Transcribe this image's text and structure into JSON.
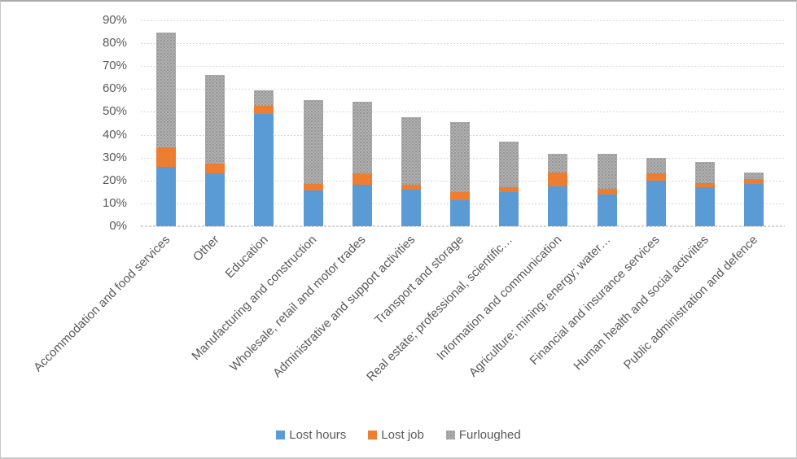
{
  "chart_data": {
    "type": "bar",
    "stacked": true,
    "orientation": "vertical",
    "title": "",
    "xlabel": "",
    "ylabel": "",
    "ylim": [
      0,
      90
    ],
    "ytick_step": 10,
    "yticks": [
      "0%",
      "10%",
      "20%",
      "30%",
      "40%",
      "50%",
      "60%",
      "70%",
      "80%",
      "90%"
    ],
    "grid": "horizontal-dotted",
    "legend_position": "bottom",
    "categories": [
      "Accommodation and food services",
      "Other",
      "Education",
      "Manufacturing and construction",
      "Wholesale, retail and motor trades",
      "Administrative and support activities",
      "Transport and storage",
      "Real estate; professional, scientific…",
      "Information and communication",
      "Agriculture; mining; energy; water…",
      "Financial and insurance services",
      "Human health and social activiites",
      "Public administration and defence"
    ],
    "series": [
      {
        "name": "Lost hours",
        "color": "#5B9BD5",
        "pattern": "solid",
        "values": [
          26,
          23,
          49,
          15.5,
          18,
          16,
          11.5,
          15,
          17.5,
          14,
          20,
          17,
          18.5
        ]
      },
      {
        "name": "Lost job",
        "color": "#ED7D31",
        "pattern": "solid",
        "values": [
          8.5,
          4.5,
          3.5,
          3,
          5,
          2,
          3.5,
          2,
          6,
          2.5,
          3,
          2,
          2
        ]
      },
      {
        "name": "Furloughed",
        "color": "#ABABAB",
        "pattern": "speckle",
        "values": [
          50,
          38.5,
          7,
          36.5,
          31.5,
          29.5,
          30.5,
          20,
          8,
          15,
          7,
          9,
          3
        ]
      }
    ],
    "totals_percent": [
      84.5,
      66,
      59.5,
      55,
      54.5,
      47.5,
      45.5,
      37,
      31.5,
      31.5,
      30,
      28,
      23.5
    ]
  },
  "colors": {
    "tick_label": "#595959",
    "category_label": "#595959",
    "legend_label": "#595959",
    "gridline": "#D9D9D9"
  }
}
